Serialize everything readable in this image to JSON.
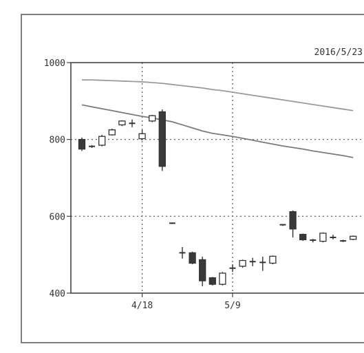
{
  "chart_data": {
    "type": "candlestick",
    "title": "",
    "date_label": "2016/5/23",
    "ylim": [
      400,
      1000
    ],
    "y_ticks": [
      "1000",
      "800",
      "600",
      "400"
    ],
    "x_ticks": [
      {
        "label": "4/18",
        "index": 6
      },
      {
        "label": "5/9",
        "index": 15
      }
    ],
    "grid": true,
    "candles": [
      {
        "open": 800,
        "close": 775,
        "high": 805,
        "low": 770
      },
      {
        "open": 782,
        "close": 782,
        "high": 785,
        "low": 778
      },
      {
        "open": 785,
        "close": 808,
        "high": 812,
        "low": 782
      },
      {
        "open": 812,
        "close": 825,
        "high": 828,
        "low": 810
      },
      {
        "open": 838,
        "close": 848,
        "high": 850,
        "low": 835
      },
      {
        "open": 842,
        "close": 842,
        "high": 852,
        "low": 832
      },
      {
        "open": 802,
        "close": 815,
        "high": 825,
        "low": 798
      },
      {
        "open": 848,
        "close": 862,
        "high": 864,
        "low": 845
      },
      {
        "open": 872,
        "close": 730,
        "high": 878,
        "low": 718
      },
      {
        "open": 582,
        "close": 582,
        "high": 584,
        "low": 580
      },
      {
        "open": 505,
        "close": 505,
        "high": 520,
        "low": 490
      },
      {
        "open": 505,
        "close": 478,
        "high": 508,
        "low": 475
      },
      {
        "open": 487,
        "close": 432,
        "high": 495,
        "low": 418
      },
      {
        "open": 440,
        "close": 423,
        "high": 442,
        "low": 420
      },
      {
        "open": 423,
        "close": 452,
        "high": 455,
        "low": 420
      },
      {
        "open": 465,
        "close": 465,
        "high": 475,
        "low": 455
      },
      {
        "open": 470,
        "close": 485,
        "high": 487,
        "low": 466
      },
      {
        "open": 482,
        "close": 482,
        "high": 492,
        "low": 470
      },
      {
        "open": 480,
        "close": 480,
        "high": 495,
        "low": 458
      },
      {
        "open": 478,
        "close": 496,
        "high": 498,
        "low": 475
      },
      {
        "open": 578,
        "close": 578,
        "high": 580,
        "low": 575
      },
      {
        "open": 612,
        "close": 567,
        "high": 615,
        "low": 545
      },
      {
        "open": 553,
        "close": 539,
        "high": 555,
        "low": 536
      },
      {
        "open": 538,
        "close": 538,
        "high": 541,
        "low": 532
      },
      {
        "open": 535,
        "close": 556,
        "high": 558,
        "low": 532
      },
      {
        "open": 545,
        "close": 545,
        "high": 552,
        "low": 540
      },
      {
        "open": 536,
        "close": 536,
        "high": 539,
        "low": 533
      },
      {
        "open": 540,
        "close": 548,
        "high": 550,
        "low": 538
      }
    ],
    "series": [
      {
        "values": [
          955,
          955,
          954,
          953,
          952,
          951,
          950,
          948,
          946,
          943,
          940,
          937,
          934,
          930,
          927,
          923,
          919,
          915,
          911,
          907,
          903,
          899,
          895,
          891,
          887,
          883,
          879,
          875
        ],
        "color": "#9a9a9a"
      },
      {
        "values": [
          890,
          885,
          880,
          875,
          870,
          865,
          860,
          856,
          851,
          846,
          838,
          830,
          822,
          816,
          812,
          808,
          803,
          798,
          793,
          788,
          783,
          779,
          775,
          770,
          766,
          762,
          758,
          753
        ],
        "color": "#7a7a7a"
      }
    ],
    "colors": {
      "up_fill": "#ffffff",
      "down_fill": "#3a3a3a",
      "candle_line": "#333333",
      "grid": "#555555",
      "frame": "#444444"
    }
  }
}
